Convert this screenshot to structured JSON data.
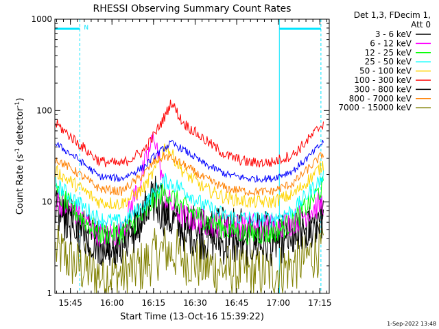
{
  "chart_data": {
    "type": "line",
    "title": "RHESSI Observing Summary Count Rates",
    "xlabel": "Start Time (13-Oct-16 15:39:22)",
    "ylabel_main": "Count Rate (s",
    "ylabel_sup1": "-1",
    "ylabel_mid": " detector",
    "ylabel_sup2": "-1",
    "ylabel_end": ")",
    "y_scale": "log",
    "ylim": [
      1,
      1000
    ],
    "y_ticks": [
      1,
      10,
      100,
      1000
    ],
    "y_tick_labels": [
      "1",
      "10",
      "100",
      "1000"
    ],
    "x_unit": "minutes after 15:39:22",
    "xlim": [
      0,
      99
    ],
    "x_ticks": [
      {
        "label": "15:45",
        "value": 5.6
      },
      {
        "label": "16:00",
        "value": 20.6
      },
      {
        "label": "16:15",
        "value": 35.6
      },
      {
        "label": "16:30",
        "value": 50.6
      },
      {
        "label": "16:45",
        "value": 65.6
      },
      {
        "label": "17:00",
        "value": 80.6
      },
      {
        "label": "17:15",
        "value": 95.6
      }
    ],
    "legend_header": [
      "Det 1,3, FDecim 1,",
      "Att 0"
    ],
    "legend_position": "right",
    "night_marker_label": "N",
    "night_intervals": [
      [
        0,
        9
      ],
      [
        81,
        96
      ]
    ],
    "series": [
      {
        "name": "3 - 6 keV",
        "color": "#000000",
        "x": [
          0,
          8,
          16,
          24,
          32,
          36,
          40,
          46,
          54,
          62,
          70,
          78,
          86,
          92,
          97
        ],
        "y": [
          9,
          6,
          3.5,
          3.5,
          8,
          14,
          9,
          6,
          5.5,
          5.5,
          5.5,
          4.5,
          4.5,
          5.5,
          7
        ]
      },
      {
        "name": "6 - 12 keV",
        "color": "#ff00ff",
        "x": [
          0,
          8,
          16,
          24,
          32,
          36,
          40,
          46,
          54,
          62,
          70,
          78,
          86,
          92,
          97
        ],
        "y": [
          11,
          7.5,
          4.5,
          4.5,
          22,
          55,
          11,
          7,
          6,
          5.5,
          5.5,
          5.5,
          6,
          8,
          10
        ]
      },
      {
        "name": "12 - 25 keV",
        "color": "#00ff00",
        "x": [
          0,
          8,
          16,
          24,
          32,
          36,
          40,
          46,
          54,
          62,
          70,
          78,
          86,
          92,
          97
        ],
        "y": [
          13,
          7.5,
          4.5,
          4.5,
          7,
          11,
          13,
          9,
          6.5,
          5,
          4.5,
          4.5,
          6,
          10,
          15
        ]
      },
      {
        "name": "25 - 50 keV",
        "color": "#00ffff",
        "x": [
          0,
          8,
          16,
          24,
          32,
          36,
          40,
          46,
          54,
          62,
          70,
          78,
          86,
          92,
          97
        ],
        "y": [
          16,
          10,
          6.5,
          6,
          9,
          13,
          17,
          14,
          9,
          7,
          6.5,
          6.5,
          8,
          13,
          19
        ]
      },
      {
        "name": "50 - 100 keV",
        "color": "#ffd400",
        "x": [
          0,
          8,
          16,
          24,
          32,
          36,
          40,
          46,
          54,
          62,
          70,
          78,
          86,
          92,
          97
        ],
        "y": [
          22,
          15,
          10,
          9.5,
          14,
          22,
          42,
          22,
          14,
          11,
          10,
          10,
          12,
          18,
          26
        ]
      },
      {
        "name": "100 - 300 keV",
        "color": "#ff0000",
        "x": [
          0,
          8,
          16,
          24,
          32,
          36,
          40,
          42,
          46,
          54,
          62,
          70,
          78,
          86,
          92,
          97
        ],
        "y": [
          74,
          45,
          28,
          26,
          36,
          55,
          90,
          125,
          75,
          48,
          32,
          27,
          27,
          33,
          50,
          74
        ]
      },
      {
        "name": "300 - 800 keV",
        "color": "#000000",
        "x": [
          0,
          8,
          16,
          24,
          32,
          36,
          40,
          46,
          54,
          62,
          70,
          78,
          86,
          92,
          97
        ],
        "y": [
          8,
          5,
          3.5,
          3.5,
          6,
          10,
          7,
          5,
          4,
          3.5,
          3.5,
          3.5,
          4,
          5,
          7
        ]
      },
      {
        "name": "800 - 7000 keV",
        "color": "#ff8000",
        "x": [
          0,
          8,
          16,
          24,
          32,
          36,
          40,
          46,
          54,
          62,
          70,
          78,
          86,
          92,
          97
        ],
        "y": [
          30,
          21,
          14,
          13,
          20,
          28,
          32,
          26,
          18,
          14,
          13,
          13,
          16,
          24,
          34
        ]
      },
      {
        "name": "7000 - 15000 keV",
        "color": "#808000",
        "x": [
          0,
          8,
          16,
          24,
          32,
          36,
          40,
          46,
          54,
          62,
          70,
          78,
          86,
          92,
          97
        ],
        "y": [
          3,
          2,
          1.6,
          1.6,
          2,
          2.6,
          3,
          2.5,
          2,
          1.8,
          1.7,
          1.7,
          2,
          2.6,
          3.2
        ]
      },
      {
        "name": "",
        "color": "#0000ff",
        "x": [
          0,
          8,
          16,
          24,
          32,
          36,
          40,
          42,
          46,
          54,
          62,
          70,
          78,
          86,
          92,
          97
        ],
        "y": [
          44,
          30,
          19,
          18,
          24,
          32,
          40,
          44,
          38,
          26,
          20,
          18,
          18,
          22,
          32,
          46
        ]
      }
    ],
    "grid": false
  },
  "footer": {
    "timestamp": "1-Sep-2022 13:48"
  }
}
